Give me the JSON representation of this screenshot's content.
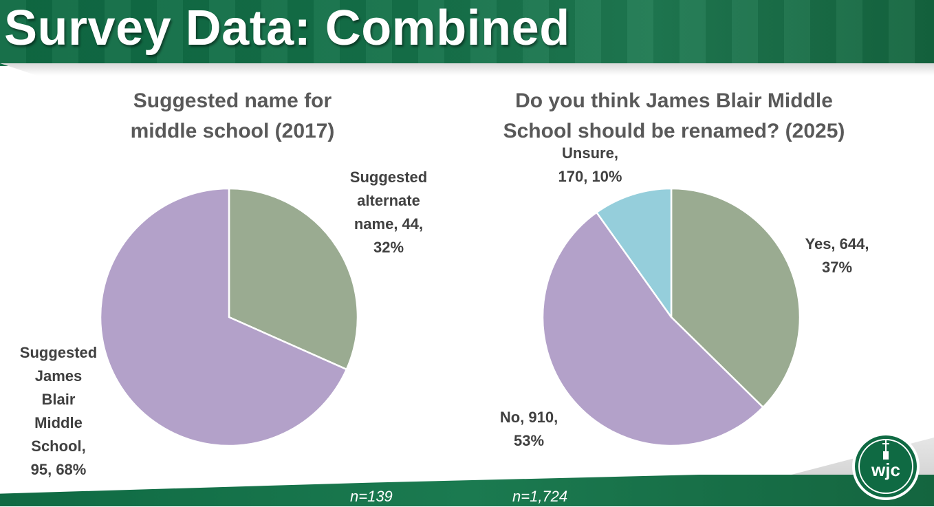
{
  "slide": {
    "title": "Survey Data: Combined"
  },
  "colors": {
    "green_slice": "#9aab91",
    "purple_slice": "#b3a1c9",
    "blue_slice": "#95cedb",
    "brand_green": "#0f6a43"
  },
  "logo": {
    "icon": "wjc-logo-icon",
    "text": "wjc"
  },
  "chart_data": [
    {
      "type": "pie",
      "title": "Suggested name for middle school (2017)",
      "slices": [
        {
          "label": "Suggested alternate name",
          "value": 44,
          "percent": 32,
          "color": "#9aab91",
          "display_lines": [
            "Suggested",
            "alternate",
            "name, 44,",
            "32%"
          ]
        },
        {
          "label": "Suggested James Blair Middle School",
          "value": 95,
          "percent": 68,
          "color": "#b3a1c9",
          "display_lines": [
            "Suggested",
            "James",
            "Blair",
            "Middle",
            "School,",
            "95, 68%"
          ]
        }
      ],
      "note": "n=139"
    },
    {
      "type": "pie",
      "title": "Do you think James Blair Middle School should be renamed? (2025)",
      "slices": [
        {
          "label": "Yes",
          "value": 644,
          "percent": 37,
          "color": "#9aab91",
          "display_lines": [
            "Yes, 644,",
            "37%"
          ]
        },
        {
          "label": "No",
          "value": 910,
          "percent": 53,
          "color": "#b3a1c9",
          "display_lines": [
            "No, 910,",
            "53%"
          ]
        },
        {
          "label": "Unsure",
          "value": 170,
          "percent": 10,
          "color": "#95cedb",
          "display_lines": [
            "Unsure,",
            "170, 10%"
          ]
        }
      ],
      "note": "n=1,724"
    }
  ]
}
